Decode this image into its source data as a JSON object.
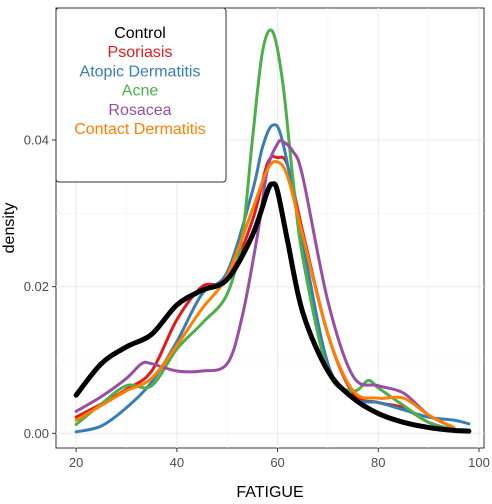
{
  "chart_data": {
    "type": "line",
    "title": "",
    "xlabel": "FATIGUE",
    "ylabel": "density",
    "xlim": [
      16,
      101
    ],
    "ylim": [
      -0.002,
      0.058
    ],
    "x_ticks": [
      20,
      40,
      60,
      80,
      100
    ],
    "y_ticks": [
      0.0,
      0.02,
      0.04
    ],
    "x_tick_labels": [
      "20",
      "40",
      "60",
      "80",
      "100"
    ],
    "y_tick_labels": [
      "0.00",
      "0.02",
      "0.04"
    ],
    "grid": true,
    "legend_position": "top-left",
    "series": [
      {
        "name": "Control",
        "color": "#000000",
        "stroke": 5,
        "x": [
          20,
          25,
          30,
          35,
          40,
          45,
          50,
          55,
          58,
          59,
          60,
          62,
          65,
          70,
          75,
          80,
          85,
          90,
          95,
          98
        ],
        "y": [
          0.0052,
          0.0095,
          0.0118,
          0.0135,
          0.0175,
          0.0195,
          0.021,
          0.027,
          0.033,
          0.034,
          0.033,
          0.0262,
          0.0165,
          0.0085,
          0.0048,
          0.0027,
          0.0015,
          0.0008,
          0.0004,
          0.0003
        ]
      },
      {
        "name": "Psoriasis",
        "color": "#e41a1c",
        "stroke": 3,
        "x": [
          20,
          25,
          30,
          35,
          40,
          45,
          50,
          55,
          58,
          60,
          62,
          65,
          70,
          75,
          80,
          85,
          90,
          95
        ],
        "y": [
          0.0022,
          0.004,
          0.006,
          0.0085,
          0.0155,
          0.02,
          0.021,
          0.029,
          0.0368,
          0.0376,
          0.0365,
          0.0275,
          0.0135,
          0.0055,
          0.0042,
          0.0035,
          0.0015,
          0.0005
        ]
      },
      {
        "name": "Atopic Dermatitis",
        "color": "#377eb8",
        "stroke": 3,
        "x": [
          20,
          25,
          30,
          35,
          40,
          45,
          50,
          55,
          57,
          59,
          61,
          65,
          70,
          75,
          80,
          85,
          90,
          95,
          98
        ],
        "y": [
          0.0002,
          0.001,
          0.0035,
          0.007,
          0.0125,
          0.019,
          0.022,
          0.033,
          0.039,
          0.042,
          0.0398,
          0.026,
          0.0095,
          0.0048,
          0.0042,
          0.0032,
          0.0022,
          0.0018,
          0.0013
        ]
      },
      {
        "name": "Acne",
        "color": "#4daf4a",
        "stroke": 3,
        "x": [
          20,
          25,
          30,
          35,
          40,
          45,
          50,
          53,
          55,
          57,
          59,
          61,
          63,
          65,
          70,
          75,
          78,
          80,
          85,
          90,
          95
        ],
        "y": [
          0.0012,
          0.004,
          0.0065,
          0.0065,
          0.0115,
          0.015,
          0.019,
          0.027,
          0.04,
          0.052,
          0.0548,
          0.048,
          0.035,
          0.024,
          0.0085,
          0.0058,
          0.0072,
          0.0062,
          0.0038,
          0.0015,
          0.0005
        ]
      },
      {
        "name": "Rosacea",
        "color": "#984ea3",
        "stroke": 3,
        "x": [
          20,
          25,
          30,
          33,
          35,
          40,
          45,
          50,
          53,
          56,
          58,
          60,
          61,
          63,
          65,
          70,
          75,
          80,
          85,
          90,
          95
        ],
        "y": [
          0.003,
          0.005,
          0.0075,
          0.0095,
          0.0095,
          0.0085,
          0.0085,
          0.0095,
          0.016,
          0.027,
          0.036,
          0.0395,
          0.0398,
          0.0385,
          0.035,
          0.018,
          0.0078,
          0.0065,
          0.0055,
          0.0025,
          0.0008
        ]
      },
      {
        "name": "Contact Dermatitis",
        "color": "#ff7f00",
        "stroke": 3,
        "x": [
          20,
          25,
          30,
          35,
          40,
          45,
          50,
          55,
          58,
          60,
          62,
          65,
          70,
          75,
          80,
          85,
          90,
          95
        ],
        "y": [
          0.0018,
          0.0038,
          0.0058,
          0.0075,
          0.012,
          0.017,
          0.0215,
          0.0305,
          0.036,
          0.037,
          0.035,
          0.027,
          0.0135,
          0.0058,
          0.0048,
          0.0048,
          0.0025,
          0.0008
        ]
      }
    ]
  }
}
